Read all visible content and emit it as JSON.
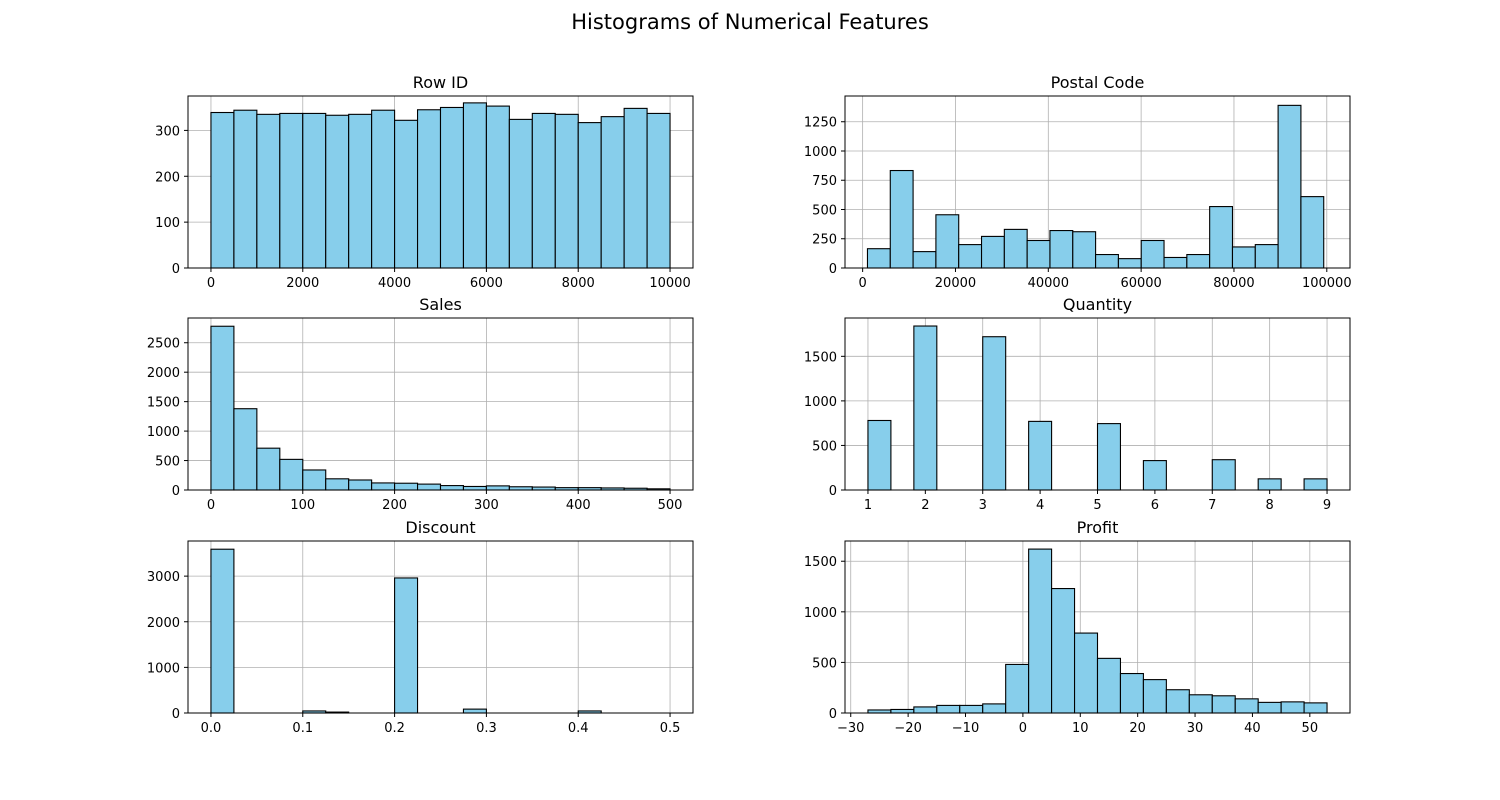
{
  "suptitle": "Histograms of Numerical Features",
  "colors": {
    "bar_fill": "#87CEEB",
    "bar_edge": "#000000",
    "grid": "#b0b0b0"
  },
  "chart_data": [
    {
      "type": "bar",
      "title": "Row ID",
      "xlabel": "",
      "ylabel": "",
      "grid": true,
      "xlim": [
        -500,
        10500
      ],
      "ylim": [
        0,
        375
      ],
      "xticks": [
        0,
        2000,
        4000,
        6000,
        8000,
        10000
      ],
      "xticklabels": [
        "0",
        "2000",
        "4000",
        "6000",
        "8000",
        "10000"
      ],
      "yticks": [
        0,
        100,
        200,
        300
      ],
      "yticklabels": [
        "0",
        "100",
        "200",
        "300"
      ],
      "bin_edges": [
        0,
        500,
        1000,
        1500,
        2000,
        2500,
        3000,
        3500,
        4000,
        4500,
        5000,
        5500,
        6000,
        6500,
        7000,
        7500,
        8000,
        8500,
        9000,
        9500,
        10000
      ],
      "counts": [
        339,
        344,
        335,
        337,
        337,
        333,
        335,
        344,
        322,
        345,
        350,
        360,
        353,
        324,
        337,
        335,
        317,
        330,
        348,
        337
      ]
    },
    {
      "type": "bar",
      "title": "Postal Code",
      "xlabel": "",
      "ylabel": "",
      "grid": true,
      "xlim": [
        -3800,
        105000
      ],
      "ylim": [
        0,
        1470
      ],
      "xticks": [
        0,
        20000,
        40000,
        60000,
        80000,
        100000
      ],
      "xticklabels": [
        "0",
        "20000",
        "40000",
        "60000",
        "80000",
        "100000"
      ],
      "yticks": [
        0,
        250,
        500,
        750,
        1000,
        1250
      ],
      "yticklabels": [
        "0",
        "250",
        "500",
        "750",
        "1000",
        "1250"
      ],
      "bin_edges": [
        1040,
        5955,
        10870,
        15785,
        20700,
        25615,
        30530,
        35445,
        40360,
        45275,
        50190,
        55105,
        60020,
        64935,
        69850,
        74765,
        79680,
        84595,
        89510,
        94425,
        99340
      ],
      "counts": [
        165,
        833,
        140,
        455,
        200,
        270,
        330,
        235,
        320,
        310,
        115,
        80,
        235,
        90,
        115,
        525,
        180,
        200,
        1390,
        610
      ]
    },
    {
      "type": "bar",
      "title": "Sales",
      "xlabel": "",
      "ylabel": "",
      "grid": true,
      "xlim": [
        -25,
        525
      ],
      "ylim": [
        0,
        2920
      ],
      "xticks": [
        0,
        100,
        200,
        300,
        400,
        500
      ],
      "xticklabels": [
        "0",
        "100",
        "200",
        "300",
        "400",
        "500"
      ],
      "yticks": [
        0,
        500,
        1000,
        1500,
        2000,
        2500
      ],
      "yticklabels": [
        "0",
        "500",
        "1000",
        "1500",
        "2000",
        "2500"
      ],
      "bin_edges": [
        0,
        25,
        50,
        75,
        100,
        125,
        150,
        175,
        200,
        225,
        250,
        275,
        300,
        325,
        350,
        375,
        400,
        425,
        450,
        475,
        500
      ],
      "counts": [
        2780,
        1380,
        710,
        520,
        340,
        190,
        170,
        120,
        115,
        100,
        75,
        60,
        70,
        55,
        50,
        40,
        40,
        35,
        30,
        20
      ]
    },
    {
      "type": "bar",
      "title": "Quantity",
      "xlabel": "",
      "ylabel": "",
      "grid": true,
      "xlim": [
        0.6,
        9.4
      ],
      "ylim": [
        0,
        1930
      ],
      "xticks": [
        1,
        2,
        3,
        4,
        5,
        6,
        7,
        8,
        9
      ],
      "xticklabels": [
        "1",
        "2",
        "3",
        "4",
        "5",
        "6",
        "7",
        "8",
        "9"
      ],
      "yticks": [
        0,
        500,
        1000,
        1500
      ],
      "yticklabels": [
        "0",
        "500",
        "1000",
        "1500"
      ],
      "bin_edges": [
        1,
        1.4,
        1.8,
        2.2,
        2.6,
        3,
        3.4,
        3.8,
        4.2,
        4.6,
        5,
        5.4,
        5.8,
        6.2,
        6.6,
        7,
        7.4,
        7.8,
        8.2,
        8.6,
        9
      ],
      "counts": [
        780,
        0,
        1840,
        0,
        0,
        1720,
        0,
        770,
        0,
        0,
        745,
        0,
        330,
        0,
        0,
        340,
        0,
        125,
        0,
        125
      ]
    },
    {
      "type": "bar",
      "title": "Discount",
      "xlabel": "",
      "ylabel": "",
      "grid": true,
      "xlim": [
        -0.025,
        0.525
      ],
      "ylim": [
        0,
        3770
      ],
      "xticks": [
        0.0,
        0.1,
        0.2,
        0.3,
        0.4,
        0.5
      ],
      "xticklabels": [
        "0.0",
        "0.1",
        "0.2",
        "0.3",
        "0.4",
        "0.5"
      ],
      "yticks": [
        0,
        1000,
        2000,
        3000
      ],
      "yticklabels": [
        "0",
        "1000",
        "2000",
        "3000"
      ],
      "bin_edges": [
        0,
        0.025,
        0.05,
        0.075,
        0.1,
        0.125,
        0.15,
        0.175,
        0.2,
        0.225,
        0.25,
        0.275,
        0.3,
        0.325,
        0.35,
        0.375,
        0.4,
        0.425,
        0.45,
        0.475,
        0.5
      ],
      "counts": [
        3590,
        0,
        0,
        0,
        45,
        20,
        0,
        0,
        2960,
        0,
        0,
        85,
        0,
        0,
        0,
        0,
        45,
        0,
        0,
        0
      ]
    },
    {
      "type": "bar",
      "title": "Profit",
      "xlabel": "",
      "ylabel": "",
      "grid": true,
      "xlim": [
        -31,
        57
      ],
      "ylim": [
        0,
        1700
      ],
      "xticks": [
        -30,
        -20,
        -10,
        0,
        10,
        20,
        30,
        40,
        50
      ],
      "xticklabels": [
        "−30",
        "−20",
        "−10",
        "0",
        "10",
        "20",
        "30",
        "40",
        "50"
      ],
      "yticks": [
        0,
        500,
        1000,
        1500
      ],
      "yticklabels": [
        "0",
        "500",
        "1000",
        "1500"
      ],
      "bin_edges": [
        -27,
        -23,
        -19,
        -15,
        -11,
        -7,
        -3,
        1,
        5,
        9,
        13,
        17,
        21,
        25,
        29,
        33,
        37,
        41,
        45,
        49,
        53
      ],
      "counts": [
        30,
        35,
        60,
        75,
        75,
        90,
        480,
        1620,
        1230,
        790,
        540,
        390,
        330,
        230,
        180,
        170,
        140,
        105,
        110,
        100
      ]
    }
  ]
}
